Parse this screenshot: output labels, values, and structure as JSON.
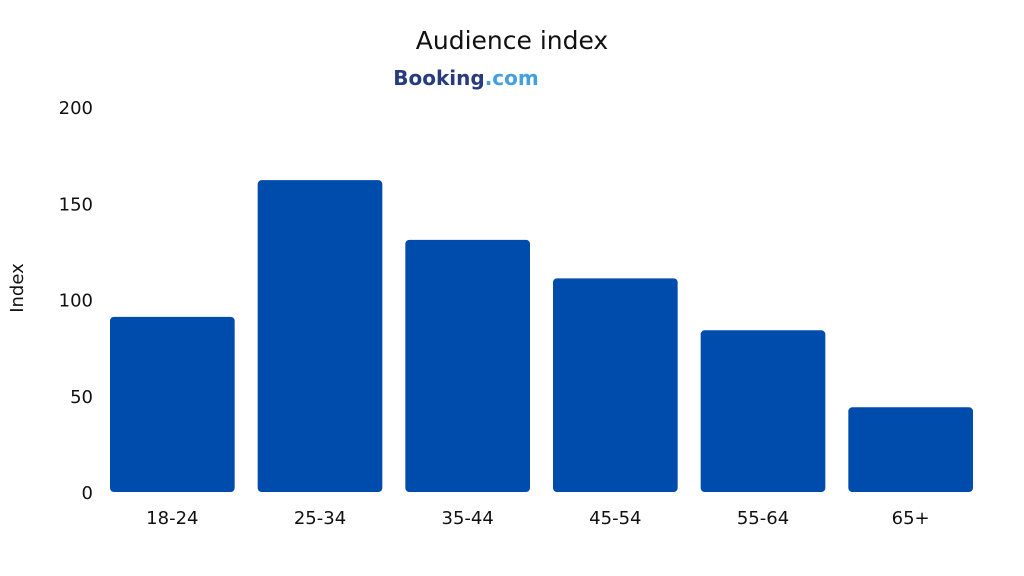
{
  "chart_data": {
    "type": "bar",
    "title": "Audience index",
    "brand": {
      "name": "Booking",
      "suffix": ".com",
      "color_name": "#273b7d",
      "color_suffix": "#449fdd"
    },
    "xlabel": "",
    "ylabel": "Index",
    "categories": [
      "18-24",
      "25-34",
      "35-44",
      "45-54",
      "55-64",
      "65+"
    ],
    "values": [
      91,
      162,
      131,
      111,
      84,
      44
    ],
    "ylim": [
      0,
      200
    ],
    "yticks": [
      0,
      50,
      100,
      150,
      200
    ],
    "bar_color": "#004cad",
    "grid": false,
    "legend": "none"
  }
}
